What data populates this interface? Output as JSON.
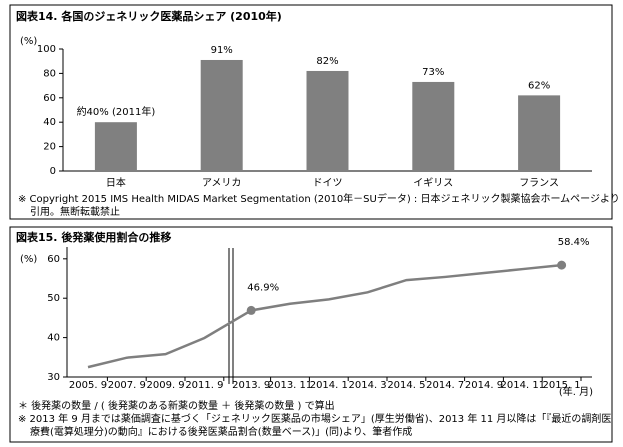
{
  "chart_data": [
    {
      "type": "bar",
      "title": "図表14. 各国のジェネリック医薬品シェア (2010年)",
      "y_label": "(%)",
      "categories": [
        "日本",
        "アメリカ",
        "ドイツ",
        "イギリス",
        "フランス"
      ],
      "values": [
        40,
        91,
        82,
        73,
        62
      ],
      "value_labels": [
        "約40% (2011年)",
        "91%",
        "82%",
        "73%",
        "62%"
      ],
      "color": "#808080",
      "ylim": [
        0,
        100
      ],
      "yticks": [
        0,
        20,
        40,
        60,
        80,
        100
      ],
      "note": "※ Copyright 2015 IMS Health MIDAS Market Segmentation (2010年－SUデータ) : 日本ジェネリック製薬協会ホームページより引用。無断転載禁止"
    },
    {
      "type": "line",
      "title": "図表15. 後発薬使用割合の推移",
      "y_label": "(%)",
      "x_unit": "(年. 月)",
      "categories": [
        "2005. 9",
        "2007. 9",
        "2009. 9",
        "2011. 9",
        "2013. 9",
        "2013. 11",
        "2014. 1",
        "2014. 3",
        "2014. 5",
        "2014. 7",
        "2014. 9",
        "2014. 11",
        "2015. 1"
      ],
      "values": [
        32.5,
        34.9,
        35.8,
        39.9,
        46.9,
        48.6,
        49.7,
        51.5,
        54.6,
        55.4,
        56.4,
        57.4,
        58.4
      ],
      "value_labels": [
        null,
        null,
        null,
        null,
        "46.9%",
        null,
        null,
        null,
        null,
        null,
        null,
        null,
        "58.4%"
      ],
      "color": "#7f7f7f",
      "ylim": [
        30,
        63
      ],
      "yticks": [
        30,
        40,
        50,
        60
      ],
      "notes": [
        "＊ 後発薬の数量 / ( 後発薬のある新薬の数量 ＋ 後発薬の数量 ) で算出",
        "※ 2013 年 9 月までは薬価調査に基づく「ジェネリック医薬品の市場シェア」(厚生労働省)、2013 年 11 月以降は「『最近の調剤医療費(電算処理分)の動向』における後発医薬品割合(数量ベース)」(同)より、筆者作成"
      ]
    }
  ]
}
